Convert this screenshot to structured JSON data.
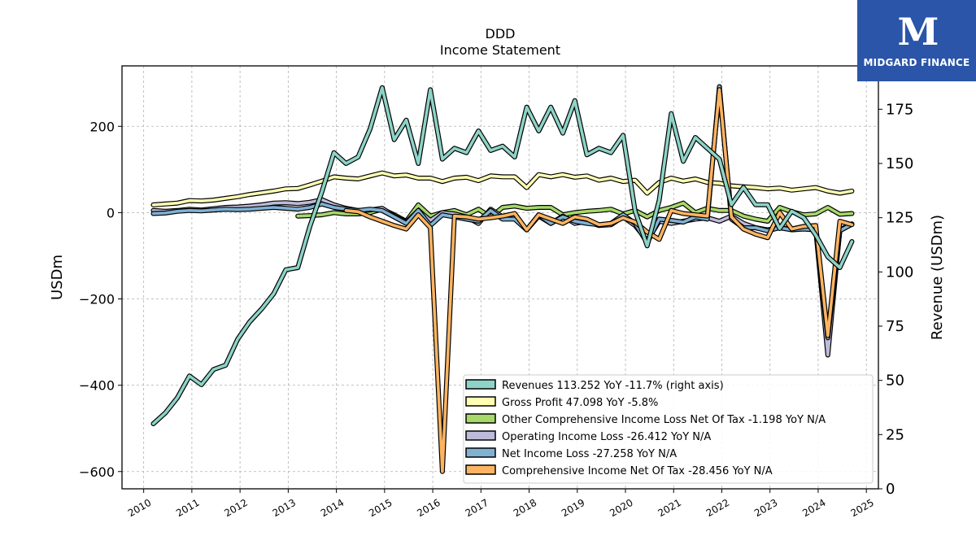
{
  "logo": {
    "brand": "MIDGARD FINANCE",
    "mark": "M"
  },
  "chart_data": {
    "type": "line",
    "title": "DDD",
    "subtitle": "Income Statement",
    "ylabel_left": "USDm",
    "ylabel_right": "Revenue (USDm)",
    "xlim": [
      2009.55,
      2025.25
    ],
    "ylim_left": [
      -640,
      340
    ],
    "ylim_right": [
      0,
      195
    ],
    "grid": true,
    "legend_position": "lower-right",
    "x_ticks": [
      2010,
      2011,
      2012,
      2013,
      2014,
      2015,
      2016,
      2017,
      2018,
      2019,
      2020,
      2021,
      2022,
      2023,
      2024,
      2025
    ],
    "y_left_ticks": [
      -600,
      -400,
      -200,
      0,
      200
    ],
    "y_left_tick_labels": [
      "−600",
      "−400",
      "−200",
      "0",
      "200"
    ],
    "y_right_ticks": [
      0,
      25,
      50,
      75,
      100,
      125,
      150,
      175
    ],
    "series": [
      {
        "name": "Revenues",
        "legend": "Revenues  113.252 YoY -11.7% (right axis)",
        "axis": "right",
        "color": "#8dd3c7",
        "x": [
          2010.2,
          2010.45,
          2010.7,
          2010.95,
          2011.2,
          2011.45,
          2011.7,
          2011.95,
          2012.2,
          2012.45,
          2012.7,
          2012.95,
          2013.2,
          2013.45,
          2013.7,
          2013.95,
          2014.2,
          2014.45,
          2014.7,
          2014.95,
          2015.2,
          2015.45,
          2015.7,
          2015.95,
          2016.2,
          2016.45,
          2016.7,
          2016.95,
          2017.2,
          2017.45,
          2017.7,
          2017.95,
          2018.2,
          2018.45,
          2018.7,
          2018.95,
          2019.2,
          2019.45,
          2019.7,
          2019.95,
          2020.2,
          2020.45,
          2020.7,
          2020.95,
          2021.2,
          2021.45,
          2021.7,
          2021.95,
          2022.2,
          2022.45,
          2022.7,
          2022.95,
          2023.2,
          2023.45,
          2023.7,
          2023.95,
          2024.2,
          2024.45,
          2024.7
        ],
        "y": [
          30,
          35,
          42,
          52,
          48,
          55,
          57,
          69,
          77,
          83,
          90,
          101,
          102,
          121,
          137,
          155,
          150,
          153,
          166,
          185,
          161,
          170,
          150,
          184,
          152,
          157,
          155,
          165,
          156,
          158,
          153,
          176,
          165,
          176,
          164,
          179,
          154,
          157,
          155,
          163,
          128,
          112,
          133,
          173,
          151,
          162,
          157,
          152,
          131,
          139,
          131,
          131,
          120,
          128,
          125,
          117,
          107,
          102,
          114
        ]
      },
      {
        "name": "Gross Profit",
        "legend": "Gross Profit  47.098 YoY -5.8%",
        "axis": "left",
        "color": "#ffffb3",
        "x": [
          2010.2,
          2010.45,
          2010.7,
          2010.95,
          2011.2,
          2011.45,
          2011.7,
          2011.95,
          2012.2,
          2012.45,
          2012.7,
          2012.95,
          2013.2,
          2013.45,
          2013.7,
          2013.95,
          2014.2,
          2014.45,
          2014.7,
          2014.95,
          2015.2,
          2015.45,
          2015.7,
          2015.95,
          2016.2,
          2016.45,
          2016.7,
          2016.95,
          2017.2,
          2017.45,
          2017.7,
          2017.95,
          2018.2,
          2018.45,
          2018.7,
          2018.95,
          2019.2,
          2019.45,
          2019.7,
          2019.95,
          2020.2,
          2020.45,
          2020.7,
          2020.95,
          2021.2,
          2021.45,
          2021.7,
          2021.95,
          2022.2,
          2022.45,
          2022.7,
          2022.95,
          2023.2,
          2023.45,
          2023.7,
          2023.95,
          2024.2,
          2024.45,
          2024.7
        ],
        "y": [
          18,
          20,
          22,
          28,
          27,
          29,
          33,
          37,
          42,
          46,
          50,
          55,
          56,
          64,
          73,
          83,
          80,
          78,
          85,
          92,
          85,
          87,
          80,
          80,
          72,
          80,
          82,
          74,
          85,
          83,
          83,
          58,
          88,
          83,
          88,
          82,
          85,
          75,
          80,
          72,
          75,
          45,
          70,
          80,
          73,
          78,
          70,
          68,
          62,
          60,
          58,
          55,
          57,
          52,
          55,
          58,
          50,
          45,
          50
        ]
      },
      {
        "name": "Other Comprehensive Income Loss Net Of Tax",
        "legend": "Other Comprehensive Income Loss Net Of Tax  -1.198 YoY N/A",
        "axis": "left",
        "color": "#a6d96a",
        "x": [
          2013.2,
          2013.45,
          2013.7,
          2013.95,
          2014.2,
          2014.45,
          2014.7,
          2014.95,
          2015.2,
          2015.45,
          2015.7,
          2015.95,
          2016.2,
          2016.45,
          2016.7,
          2016.95,
          2017.2,
          2017.45,
          2017.7,
          2017.95,
          2018.2,
          2018.45,
          2018.7,
          2018.95,
          2019.2,
          2019.45,
          2019.7,
          2019.95,
          2020.2,
          2020.45,
          2020.7,
          2020.95,
          2021.2,
          2021.45,
          2021.7,
          2021.95,
          2022.2,
          2022.45,
          2022.7,
          2022.95,
          2023.2,
          2023.45,
          2023.7,
          2023.95,
          2024.2,
          2024.45,
          2024.7
        ],
        "y": [
          -8,
          -7,
          -5,
          0,
          -3,
          -3,
          0,
          8,
          -5,
          -20,
          18,
          -8,
          0,
          5,
          -5,
          8,
          -10,
          12,
          15,
          10,
          12,
          12,
          -5,
          0,
          3,
          5,
          8,
          -3,
          5,
          -10,
          5,
          12,
          22,
          0,
          10,
          5,
          5,
          -8,
          -15,
          -20,
          12,
          2,
          -5,
          -3,
          12,
          -4,
          -2
        ]
      },
      {
        "name": "Operating Income Loss",
        "legend": "Operating Income Loss  -26.412 YoY N/A",
        "axis": "left",
        "color": "#bebada",
        "x": [
          2010.2,
          2010.45,
          2010.7,
          2010.95,
          2011.2,
          2011.45,
          2011.7,
          2011.95,
          2012.2,
          2012.45,
          2012.7,
          2012.95,
          2013.2,
          2013.45,
          2013.7,
          2013.95,
          2014.2,
          2014.45,
          2014.7,
          2014.95,
          2015.2,
          2015.45,
          2015.7,
          2015.95,
          2016.2,
          2016.45,
          2016.7,
          2016.95,
          2017.2,
          2017.45,
          2017.7,
          2017.95,
          2018.2,
          2018.45,
          2018.7,
          2018.95,
          2019.2,
          2019.45,
          2019.7,
          2019.95,
          2020.2,
          2020.45,
          2020.7,
          2020.95,
          2021.2,
          2021.45,
          2021.7,
          2021.95,
          2022.2,
          2022.45,
          2022.7,
          2022.95,
          2023.2,
          2023.45,
          2023.7,
          2023.95,
          2024.2,
          2024.45,
          2024.7
        ],
        "y": [
          5,
          3,
          5,
          8,
          6,
          9,
          12,
          13,
          15,
          18,
          22,
          23,
          21,
          24,
          30,
          18,
          10,
          5,
          6,
          10,
          -8,
          -22,
          5,
          -18,
          0,
          -3,
          -10,
          -25,
          8,
          -10,
          -12,
          -40,
          -8,
          -25,
          -8,
          -25,
          -20,
          -30,
          -28,
          -10,
          -30,
          -65,
          -20,
          -25,
          -20,
          -15,
          -12,
          -20,
          -8,
          -25,
          -35,
          -40,
          -35,
          -38,
          -32,
          -40,
          -330,
          -40,
          -26
        ]
      },
      {
        "name": "Net Income Loss",
        "legend": "Net Income Loss  -27.258 YoY N/A",
        "axis": "left",
        "color": "#80b1d3",
        "x": [
          2010.2,
          2010.45,
          2010.7,
          2010.95,
          2011.2,
          2011.45,
          2011.7,
          2011.95,
          2012.2,
          2012.45,
          2012.7,
          2012.95,
          2013.2,
          2013.45,
          2013.7,
          2013.95,
          2014.2,
          2014.45,
          2014.7,
          2014.95,
          2015.2,
          2015.45,
          2015.7,
          2015.95,
          2016.2,
          2016.45,
          2016.7,
          2016.95,
          2017.2,
          2017.45,
          2017.7,
          2017.95,
          2018.2,
          2018.45,
          2018.7,
          2018.95,
          2019.2,
          2019.45,
          2019.7,
          2019.95,
          2020.2,
          2020.45,
          2020.7,
          2020.95,
          2021.2,
          2021.45,
          2021.7,
          2021.95,
          2022.2,
          2022.45,
          2022.7,
          2022.95,
          2023.2,
          2023.45,
          2023.7,
          2023.95,
          2024.2,
          2024.45,
          2024.7
        ],
        "y": [
          -2,
          -1,
          3,
          5,
          4,
          6,
          8,
          7,
          8,
          10,
          12,
          10,
          8,
          12,
          20,
          12,
          8,
          5,
          8,
          5,
          -10,
          -25,
          5,
          -30,
          -5,
          -10,
          -15,
          -20,
          5,
          -15,
          -15,
          -40,
          -5,
          -25,
          -10,
          -20,
          -25,
          -28,
          -25,
          -5,
          -25,
          -70,
          -15,
          -18,
          -22,
          -10,
          -15,
          292,
          -15,
          -35,
          -35,
          -42,
          -35,
          -40,
          -38,
          -40,
          -290,
          -42,
          -27
        ]
      },
      {
        "name": "Comprehensive Income Net Of Tax",
        "legend": "Comprehensive Income Net Of Tax  -28.456 YoY N/A",
        "axis": "left",
        "color": "#fdb462",
        "x": [
          2014.2,
          2014.45,
          2014.7,
          2014.95,
          2015.2,
          2015.45,
          2015.7,
          2015.95,
          2016.2,
          2016.45,
          2016.7,
          2016.95,
          2017.2,
          2017.45,
          2017.7,
          2017.95,
          2018.2,
          2018.45,
          2018.7,
          2018.95,
          2019.2,
          2019.45,
          2019.7,
          2019.95,
          2020.2,
          2020.45,
          2020.7,
          2020.95,
          2021.2,
          2021.45,
          2021.7,
          2021.95,
          2022.2,
          2022.45,
          2022.7,
          2022.95,
          2023.2,
          2023.45,
          2023.7,
          2023.95,
          2024.2,
          2024.45,
          2024.7
        ],
        "y": [
          5,
          2,
          -10,
          -20,
          -30,
          -38,
          -5,
          -35,
          -600,
          -8,
          -10,
          -15,
          -12,
          -8,
          -2,
          -40,
          -5,
          -15,
          -25,
          -10,
          -15,
          -28,
          -25,
          -12,
          -22,
          -45,
          -62,
          5,
          -2,
          -5,
          -8,
          285,
          -10,
          -38,
          -50,
          -58,
          0,
          -38,
          -32,
          -30,
          -285,
          -20,
          -28
        ]
      }
    ]
  }
}
